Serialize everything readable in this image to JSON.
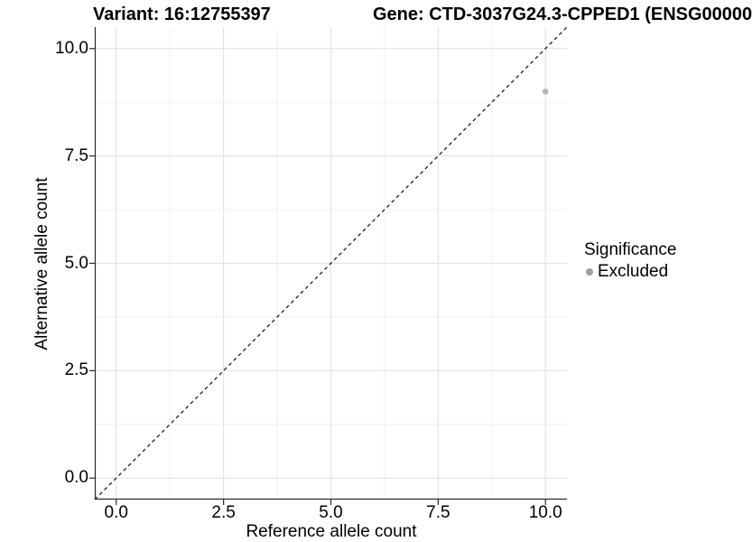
{
  "chart_data": {
    "type": "scatter",
    "title_left": "Variant: 16:12755397",
    "title_right": "Gene: CTD-3037G24.3-CPPED1 (ENSG00000",
    "xlabel": "Reference allele count",
    "ylabel": "Alternative allele count",
    "xlim": [
      -0.5,
      10.5
    ],
    "ylim": [
      -0.5,
      10.5
    ],
    "x_ticks": [
      0,
      2.5,
      5,
      7.5,
      10
    ],
    "y_ticks": [
      0,
      2.5,
      5,
      7.5,
      10
    ],
    "x_tick_labels": [
      "0.0",
      "2.5",
      "5.0",
      "7.5",
      "10.0"
    ],
    "y_tick_labels": [
      "0.0",
      "2.5",
      "5.0",
      "7.5",
      "10.0"
    ],
    "grid": {
      "show_major": true,
      "show_minor": true
    },
    "reference_line": {
      "type": "identity y = x",
      "style": "dashed",
      "color": "#1a1a1a"
    },
    "series": [
      {
        "name": "Excluded",
        "color": "#b5b5b5",
        "points": [
          {
            "x": 10,
            "y": 9
          }
        ]
      }
    ],
    "legend": {
      "title": "Significance",
      "position": "right",
      "entries": [
        {
          "label": "Excluded",
          "color": "#a0a0a0",
          "marker": "circle"
        }
      ]
    }
  },
  "colors": {
    "background": "#ffffff",
    "grid_major": "#e4e4e4",
    "grid_minor": "#f1f1f1",
    "axis_line": "#2b2b2b",
    "text": "#000000"
  }
}
